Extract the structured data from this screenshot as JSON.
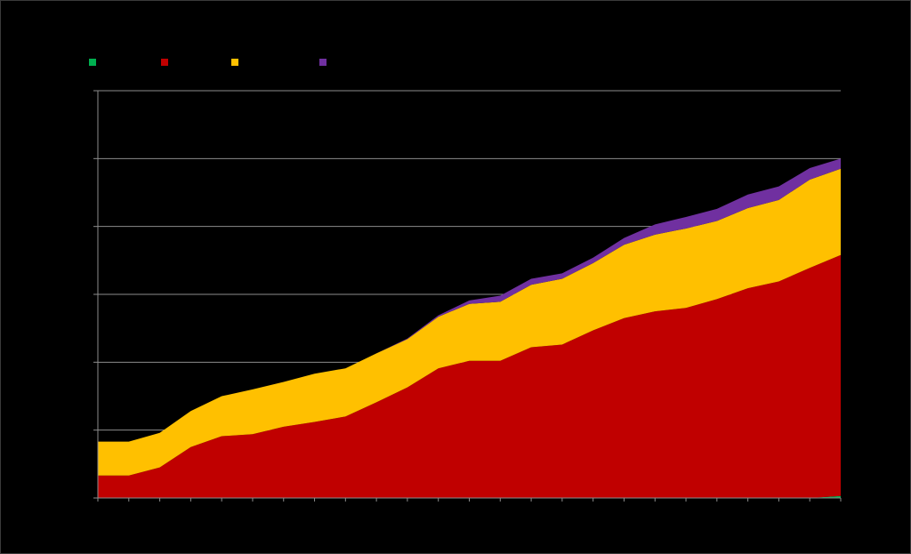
{
  "chart_data": {
    "type": "area",
    "stacked": true,
    "title": "",
    "xlabel": "",
    "ylabel": "",
    "ylim": [
      0,
      6
    ],
    "gridlines": [
      0,
      1,
      2,
      3,
      4,
      5,
      6
    ],
    "grid": true,
    "legend_position": "top-left",
    "x": [
      1,
      2,
      3,
      4,
      5,
      6,
      7,
      8,
      9,
      10,
      11,
      12,
      13,
      14,
      15,
      16,
      17,
      18,
      19,
      20,
      21,
      22,
      23,
      24,
      25
    ],
    "series": [
      {
        "name": "",
        "color": "#00b050",
        "values": [
          0,
          0,
          0,
          0,
          0,
          0,
          0,
          0,
          0,
          0,
          0,
          0,
          0,
          0,
          0,
          0,
          0,
          0,
          0,
          0,
          0,
          0,
          0,
          0,
          0.03
        ]
      },
      {
        "name": "",
        "color": "#c00000",
        "values": [
          0.33,
          0.33,
          0.45,
          0.75,
          0.91,
          0.94,
          1.05,
          1.12,
          1.2,
          1.41,
          1.63,
          1.91,
          2.02,
          2.02,
          2.22,
          2.26,
          2.47,
          2.65,
          2.75,
          2.8,
          2.93,
          3.09,
          3.19,
          3.39,
          3.55
        ]
      },
      {
        "name": "",
        "color": "#ffc000",
        "values": [
          0.5,
          0.5,
          0.51,
          0.53,
          0.59,
          0.66,
          0.66,
          0.71,
          0.71,
          0.72,
          0.71,
          0.76,
          0.84,
          0.87,
          0.92,
          0.97,
          0.99,
          1.08,
          1.13,
          1.17,
          1.15,
          1.18,
          1.2,
          1.3,
          1.27
        ]
      },
      {
        "name": "",
        "color": "#7030a0",
        "values": [
          0,
          0,
          0,
          0,
          0,
          0,
          0,
          0,
          0,
          0,
          0.01,
          0.02,
          0.05,
          0.09,
          0.09,
          0.08,
          0.08,
          0.1,
          0.15,
          0.17,
          0.18,
          0.2,
          0.2,
          0.17,
          0.15
        ]
      }
    ]
  }
}
